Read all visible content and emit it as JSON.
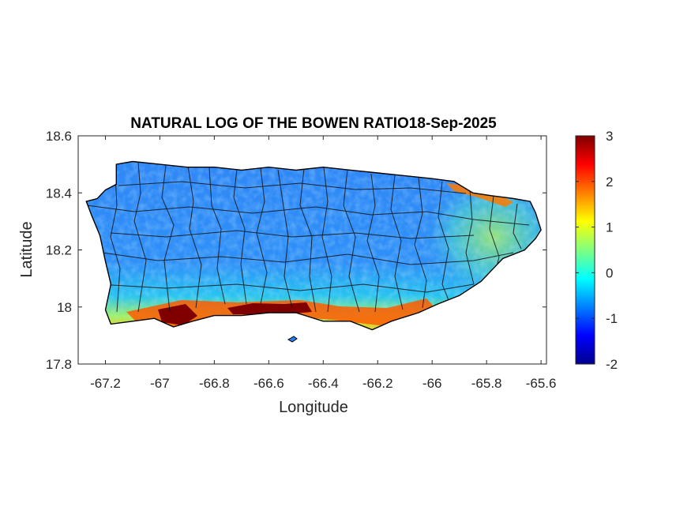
{
  "chart_data": {
    "type": "heatmap",
    "title": "NATURAL LOG OF THE BOWEN RATIO18-Sep-2025",
    "xlabel": "Longitude",
    "ylabel": "Latitude",
    "xlim": [
      -67.3,
      -65.58
    ],
    "ylim": [
      17.8,
      18.6
    ],
    "xticks": [
      -67.2,
      -67,
      -66.8,
      -66.6,
      -66.4,
      -66.2,
      -66,
      -65.8,
      -65.6
    ],
    "xtick_labels": [
      "-67.2",
      "-67",
      "-66.8",
      "-66.6",
      "-66.4",
      "-66.2",
      "-66",
      "-65.8",
      "-65.6"
    ],
    "yticks": [
      17.8,
      18,
      18.2,
      18.4,
      18.6
    ],
    "ytick_labels": [
      "17.8",
      "18",
      "18.2",
      "18.4",
      "18.6"
    ],
    "colorbar": {
      "colormap": "jet",
      "limits": [
        -2,
        3
      ],
      "ticks": [
        -2,
        -1,
        0,
        1,
        2,
        3
      ],
      "tick_labels": [
        "-2",
        "-1",
        "0",
        "1",
        "2",
        "3"
      ]
    },
    "grid": false,
    "colors": {
      "background": "#ffffff",
      "outline": "#000000",
      "dominant": "#2f8cff",
      "north_west": "#3b8df0",
      "east": "#7fe0a0",
      "south_coast": "#ff5a00",
      "south_extreme": "#7a0000"
    }
  }
}
